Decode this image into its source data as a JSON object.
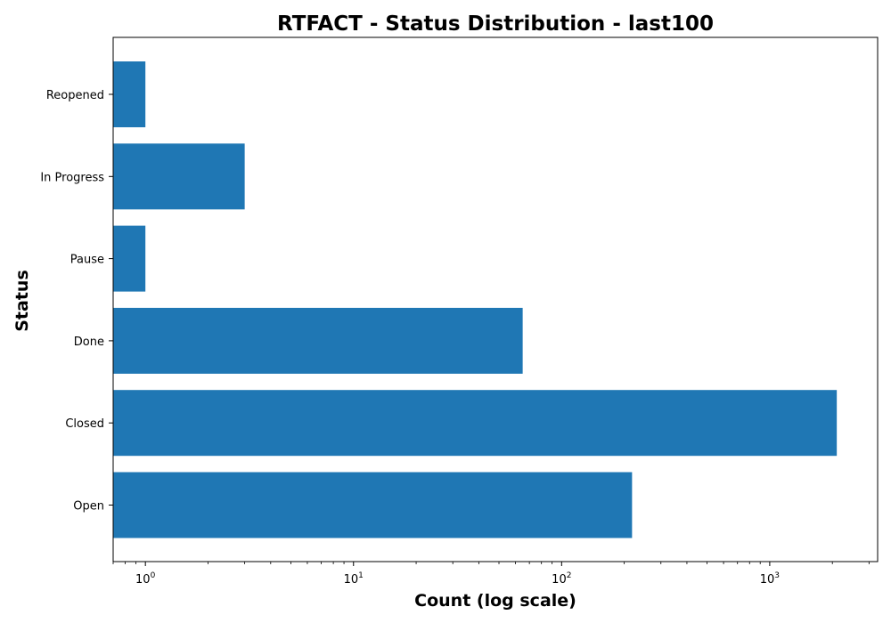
{
  "chart_data": {
    "type": "bar",
    "orientation": "horizontal",
    "title": "RTFACT - Status Distribution - last100",
    "xlabel": "Count (log scale)",
    "ylabel": "Status",
    "xscale": "log",
    "xlim": [
      0.7,
      3300
    ],
    "x_ticks": [
      {
        "value": 1,
        "base": "10",
        "exp": "0"
      },
      {
        "value": 10,
        "base": "10",
        "exp": "1"
      },
      {
        "value": 100,
        "base": "10",
        "exp": "2"
      },
      {
        "value": 1000,
        "base": "10",
        "exp": "3"
      }
    ],
    "categories": [
      "Reopened",
      "In Progress",
      "Pause",
      "Done",
      "Closed",
      "Open"
    ],
    "values": [
      1,
      3,
      1,
      65,
      2100,
      218
    ],
    "bar_color": "#1f77b4",
    "grid": false,
    "legend": "none"
  }
}
